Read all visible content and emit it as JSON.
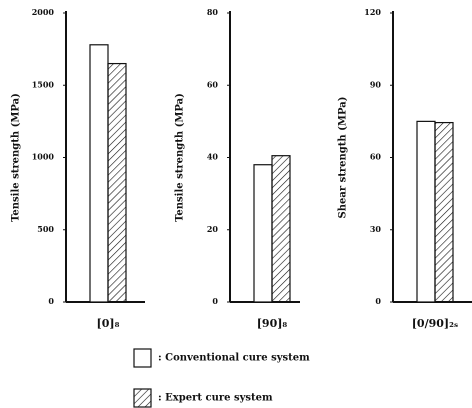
{
  "chart_data": [
    {
      "type": "bar",
      "ylabel": "Tensile strength (MPa)",
      "categories": [
        "[0]₈"
      ],
      "series": [
        {
          "values": [
            1780
          ]
        },
        {
          "values": [
            1650
          ]
        }
      ],
      "ylim": [
        0,
        2000
      ],
      "yticks": [
        0,
        500,
        1000,
        1500,
        2000
      ]
    },
    {
      "type": "bar",
      "ylabel": "Tensile strength (MPa)",
      "categories": [
        "[90]₈"
      ],
      "series": [
        {
          "values": [
            38
          ]
        },
        {
          "values": [
            40.5
          ]
        }
      ],
      "ylim": [
        0,
        80
      ],
      "yticks": [
        0,
        20,
        40,
        60,
        80
      ]
    },
    {
      "type": "bar",
      "ylabel": "Shear strength (MPa)",
      "categories": [
        "[0/90]₂ₛ"
      ],
      "series": [
        {
          "values": [
            75
          ]
        },
        {
          "values": [
            74.5
          ]
        }
      ],
      "ylim": [
        0,
        120
      ],
      "yticks": [
        0,
        30,
        60,
        90,
        120
      ]
    }
  ],
  "legend": {
    "items": [
      {
        "label": ": Conventional cure system",
        "fill": "none"
      },
      {
        "label": ": Expert cure system",
        "fill": "hatch"
      }
    ]
  }
}
